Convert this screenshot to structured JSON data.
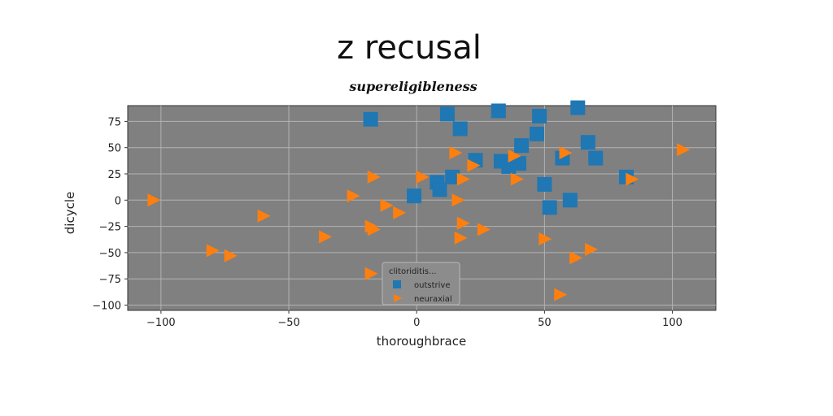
{
  "chart_data": {
    "type": "scatter",
    "title": "z recusal",
    "subtitle": "supereligibleness",
    "xlabel": "thoroughbrace",
    "ylabel": "dicycle",
    "xlim": [
      -113,
      117
    ],
    "ylim": [
      -105,
      90
    ],
    "xticks": [
      -100,
      -50,
      0,
      50,
      100
    ],
    "yticks": [
      75,
      50,
      25,
      0,
      -25,
      -50,
      -75,
      -100
    ],
    "xtick_labels": [
      "−100",
      "−50",
      "0",
      "50",
      "100"
    ],
    "ytick_labels": [
      "75",
      "50",
      "25",
      "0",
      "−25",
      "−50",
      "−75",
      "−100"
    ],
    "grid": true,
    "plot_background": "#808080",
    "legend": {
      "title": "clitoriditis...",
      "placement": "lower-center"
    },
    "series": [
      {
        "name": "outstrive",
        "marker": "square",
        "color": "#1f77b4",
        "points": [
          [
            -18,
            77
          ],
          [
            12,
            82
          ],
          [
            17,
            68
          ],
          [
            32,
            85
          ],
          [
            48,
            80
          ],
          [
            47,
            63
          ],
          [
            41,
            52
          ],
          [
            63,
            88
          ],
          [
            67,
            55
          ],
          [
            70,
            40
          ],
          [
            57,
            40
          ],
          [
            23,
            38
          ],
          [
            33,
            37
          ],
          [
            40,
            35
          ],
          [
            36,
            32
          ],
          [
            14,
            22
          ],
          [
            8,
            17
          ],
          [
            9,
            10
          ],
          [
            50,
            15
          ],
          [
            -1,
            4
          ],
          [
            60,
            0
          ],
          [
            52,
            -7
          ],
          [
            82,
            22
          ]
        ]
      },
      {
        "name": "neuraxial",
        "marker": "triangle-right",
        "color": "#ff7f0e",
        "points": [
          [
            -103,
            0
          ],
          [
            -60,
            -15
          ],
          [
            -80,
            -48
          ],
          [
            -73,
            -53
          ],
          [
            -36,
            -35
          ],
          [
            -25,
            4
          ],
          [
            -17,
            22
          ],
          [
            -12,
            -5
          ],
          [
            -7,
            -12
          ],
          [
            -18,
            -25
          ],
          [
            -17,
            -28
          ],
          [
            -18,
            -70
          ],
          [
            2,
            22
          ],
          [
            15,
            45
          ],
          [
            22,
            33
          ],
          [
            18,
            20
          ],
          [
            16,
            0
          ],
          [
            18,
            -22
          ],
          [
            17,
            -36
          ],
          [
            26,
            -28
          ],
          [
            38,
            42
          ],
          [
            39,
            20
          ],
          [
            58,
            45
          ],
          [
            84,
            20
          ],
          [
            104,
            48
          ],
          [
            50,
            -37
          ],
          [
            68,
            -47
          ],
          [
            62,
            -55
          ],
          [
            56,
            -90
          ]
        ]
      }
    ]
  }
}
